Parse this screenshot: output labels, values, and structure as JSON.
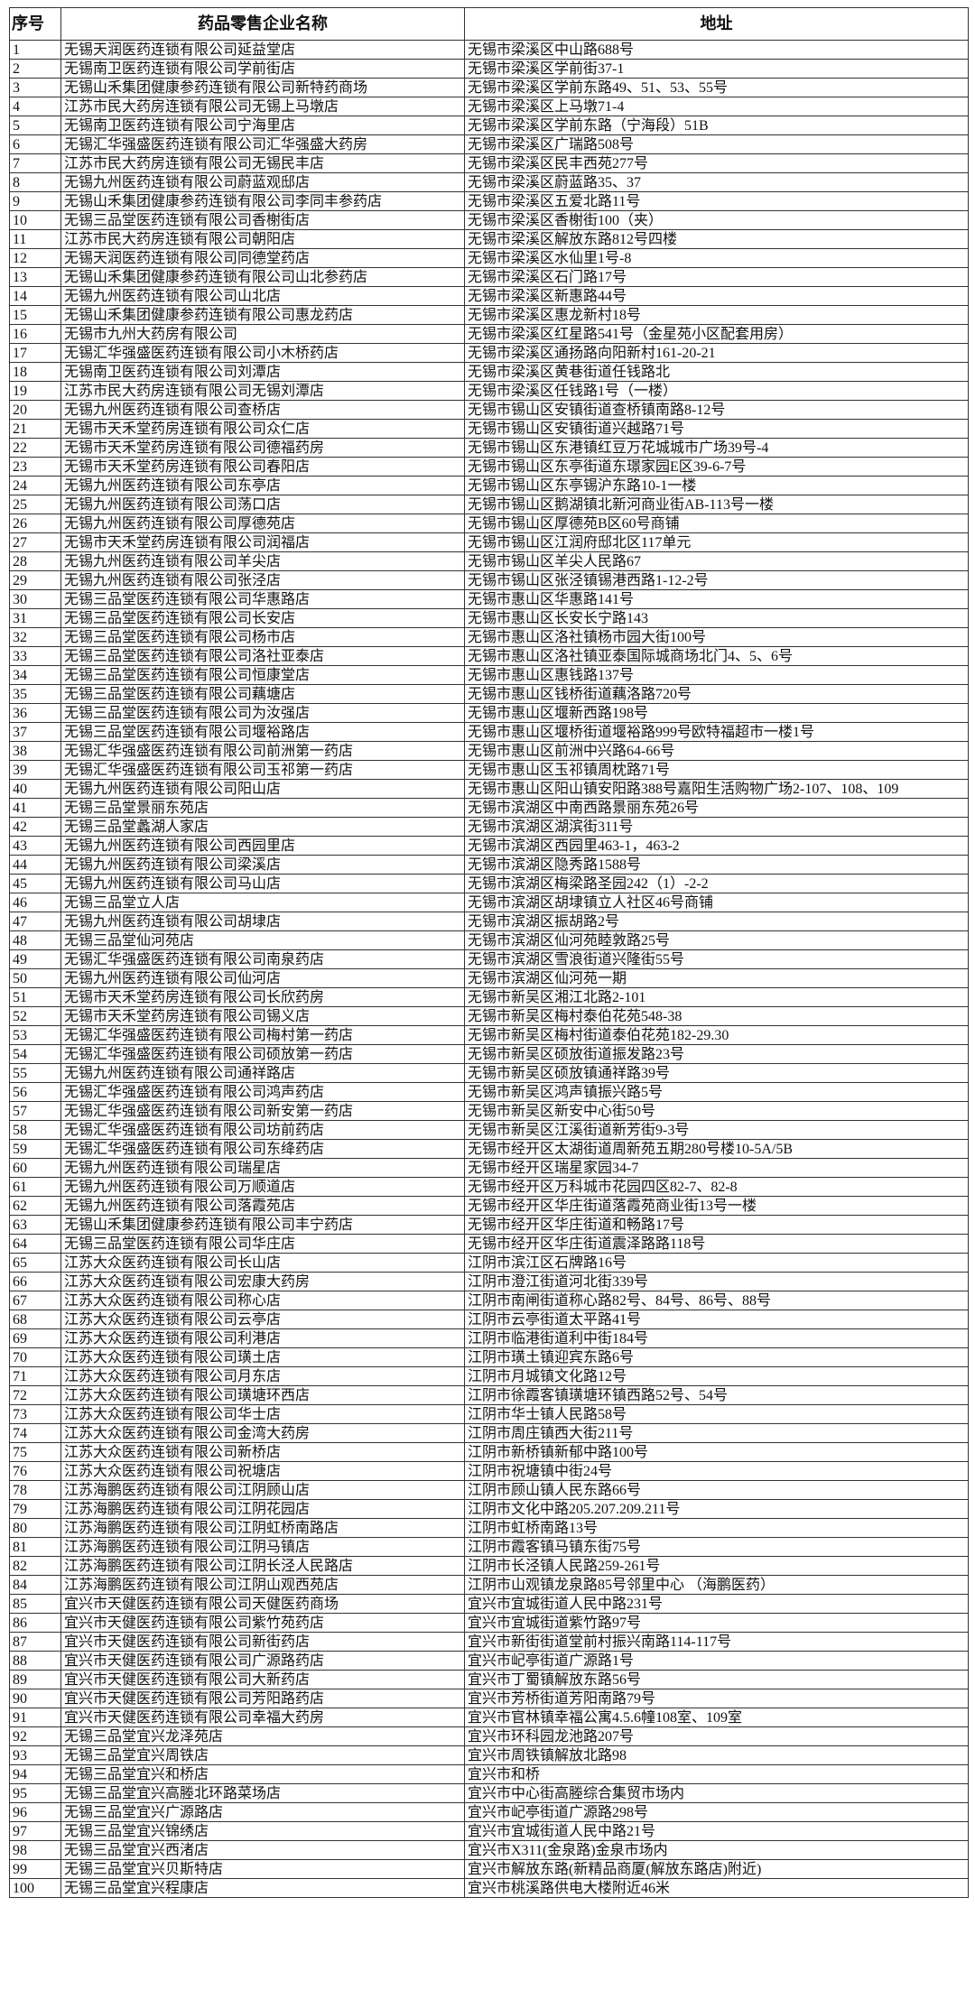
{
  "table": {
    "headers": [
      "序号",
      "药品零售企业名称",
      "地址"
    ],
    "rows": [
      [
        "1",
        "无锡天润医药连锁有限公司延益堂店",
        "无锡市梁溪区中山路688号"
      ],
      [
        "2",
        "无锡南卫医药连锁有限公司学前街店",
        "无锡市梁溪区学前街37-1"
      ],
      [
        "3",
        "无锡山禾集团健康参药连锁有限公司新特药商场",
        "无锡市梁溪区学前东路49、51、53、55号"
      ],
      [
        "4",
        "江苏市民大药房连锁有限公司无锡上马墩店",
        "无锡市梁溪区上马墩71-4"
      ],
      [
        "5",
        "无锡南卫医药连锁有限公司宁海里店",
        "无锡市梁溪区学前东路（宁海段）51B"
      ],
      [
        "6",
        "无锡汇华强盛医药连锁有限公司汇华强盛大药房",
        "无锡市梁溪区广瑞路508号"
      ],
      [
        "7",
        "江苏市民大药房连锁有限公司无锡民丰店",
        "无锡市梁溪区民丰西苑277号"
      ],
      [
        "8",
        "无锡九州医药连锁有限公司蔚蓝观邸店",
        "无锡市梁溪区蔚蓝路35、37"
      ],
      [
        "9",
        "无锡山禾集团健康参药连锁有限公司李同丰参药店",
        "无锡市梁溪区五爱北路11号"
      ],
      [
        "10",
        "无锡三品堂医药连锁有限公司香榭街店",
        "无锡市梁溪区香榭街100（夹）"
      ],
      [
        "11",
        "江苏市民大药房连锁有限公司朝阳店",
        "无锡市梁溪区解放东路812号四楼"
      ],
      [
        "12",
        "无锡天润医药连锁有限公司同德堂药店",
        "无锡市梁溪区水仙里1号-8"
      ],
      [
        "13",
        "无锡山禾集团健康参药连锁有限公司山北参药店",
        "无锡市梁溪区石门路17号"
      ],
      [
        "14",
        "无锡九州医药连锁有限公司山北店",
        "无锡市梁溪区新惠路44号"
      ],
      [
        "15",
        "无锡山禾集团健康参药连锁有限公司惠龙药店",
        "无锡市梁溪区惠龙新村18号"
      ],
      [
        "16",
        "无锡市九州大药房有限公司",
        "无锡市梁溪区红星路541号（金星苑小区配套用房）"
      ],
      [
        "17",
        "无锡汇华强盛医药连锁有限公司小木桥药店",
        "无锡市梁溪区通扬路向阳新村161-20-21"
      ],
      [
        "18",
        "无锡南卫医药连锁有限公司刘潭店",
        "无锡市梁溪区黄巷街道任钱路北"
      ],
      [
        "19",
        "江苏市民大药房连锁有限公司无锡刘潭店",
        "无锡市梁溪区任钱路1号（一楼）"
      ],
      [
        "20",
        "无锡九州医药连锁有限公司查桥店",
        "无锡市锡山区安镇街道查桥镇南路8-12号"
      ],
      [
        "21",
        "无锡市天禾堂药房连锁有限公司众仁店",
        "无锡市锡山区安镇街道兴越路71号"
      ],
      [
        "22",
        "无锡市天禾堂药房连锁有限公司德福药房",
        "无锡市锡山区东港镇红豆万花城城市广场39号-4"
      ],
      [
        "23",
        "无锡市天禾堂药房连锁有限公司春阳店",
        "无锡市锡山区东亭街道东璟家园E区39-6-7号"
      ],
      [
        "24",
        "无锡九州医药连锁有限公司东亭店",
        "无锡市锡山区东亭锡沪东路10-1一楼"
      ],
      [
        "25",
        "无锡九州医药连锁有限公司荡口店",
        "无锡市锡山区鹅湖镇北新河商业街AB-113号一楼"
      ],
      [
        "26",
        "无锡九州医药连锁有限公司厚德苑店",
        "无锡市锡山区厚德苑B区60号商铺"
      ],
      [
        "27",
        "无锡市天禾堂药房连锁有限公司润福店",
        "无锡市锡山区江润府邸北区117单元"
      ],
      [
        "28",
        "无锡九州医药连锁有限公司羊尖店",
        "无锡市锡山区羊尖人民路67"
      ],
      [
        "29",
        "无锡九州医药连锁有限公司张泾店",
        "无锡市锡山区张泾镇锡港西路1-12-2号"
      ],
      [
        "30",
        "无锡三品堂医药连锁有限公司华惠路店",
        "无锡市惠山区华惠路141号"
      ],
      [
        "31",
        "无锡三品堂医药连锁有限公司长安店",
        "无锡市惠山区长安长宁路143"
      ],
      [
        "32",
        "无锡三品堂医药连锁有限公司杨市店",
        "无锡市惠山区洛社镇杨市园大街100号"
      ],
      [
        "33",
        "无锡三品堂医药连锁有限公司洛社亚泰店",
        "无锡市惠山区洛社镇亚泰国际城商场北门4、5、6号"
      ],
      [
        "34",
        "无锡三品堂医药连锁有限公司恒康堂店",
        "无锡市惠山区惠钱路137号"
      ],
      [
        "35",
        "无锡三品堂医药连锁有限公司藕塘店",
        "无锡市惠山区钱桥街道藕洛路720号"
      ],
      [
        "36",
        "无锡三品堂医药连锁有限公司为汝强店",
        "无锡市惠山区堰新西路198号"
      ],
      [
        "37",
        "无锡三品堂医药连锁有限公司堰裕路店",
        "无锡市惠山区堰桥街道堰裕路999号欧特福超市一楼1号"
      ],
      [
        "38",
        "无锡汇华强盛医药连锁有限公司前洲第一药店",
        "无锡市惠山区前洲中兴路64-66号"
      ],
      [
        "39",
        "无锡汇华强盛医药连锁有限公司玉祁第一药店",
        "无锡市惠山区玉祁镇周枕路71号"
      ],
      [
        "40",
        "无锡九州医药连锁有限公司阳山店",
        "无锡市惠山区阳山镇安阳路388号嘉阳生活购物广场2-107、108、109"
      ],
      [
        "41",
        "无锡三品堂景丽东苑店",
        "无锡市滨湖区中南西路景丽东苑26号"
      ],
      [
        "42",
        "无锡三品堂蠡湖人家店",
        "无锡市滨湖区湖滨街311号"
      ],
      [
        "43",
        "无锡九州医药连锁有限公司西园里店",
        "无锡市滨湖区西园里463-1，463-2"
      ],
      [
        "44",
        "无锡九州医药连锁有限公司梁溪店",
        "无锡市滨湖区隐秀路1588号"
      ],
      [
        "45",
        "无锡九州医药连锁有限公司马山店",
        "无锡市滨湖区梅梁路圣园242（1）-2-2"
      ],
      [
        "46",
        "无锡三品堂立人店",
        "无锡市滨湖区胡埭镇立人社区46号商铺"
      ],
      [
        "47",
        "无锡九州医药连锁有限公司胡埭店",
        "无锡市滨湖区振胡路2号"
      ],
      [
        "48",
        "无锡三品堂仙河苑店",
        "无锡市滨湖区仙河苑睦敦路25号"
      ],
      [
        "49",
        "无锡汇华强盛医药连锁有限公司南泉药店",
        "无锡市滨湖区雪浪街道兴隆街55号"
      ],
      [
        "50",
        "无锡九州医药连锁有限公司仙河店",
        "无锡市滨湖区仙河苑一期"
      ],
      [
        "51",
        "无锡市天禾堂药房连锁有限公司长欣药房",
        "无锡市新吴区湘江北路2-101"
      ],
      [
        "52",
        "无锡市天禾堂药房连锁有限公司锡义店",
        "无锡市新吴区梅村泰伯花苑548-38"
      ],
      [
        "53",
        "无锡汇华强盛医药连锁有限公司梅村第一药店",
        "无锡市新吴区梅村街道泰伯花苑182-29.30"
      ],
      [
        "54",
        "无锡汇华强盛医药连锁有限公司硕放第一药店",
        "无锡市新吴区硕放街道振发路23号"
      ],
      [
        "55",
        "无锡九州医药连锁有限公司通祥路店",
        "无锡市新吴区硕放镇通祥路39号"
      ],
      [
        "56",
        "无锡汇华强盛医药连锁有限公司鸿声药店",
        "无锡市新吴区鸿声镇振兴路5号"
      ],
      [
        "57",
        "无锡汇华强盛医药连锁有限公司新安第一药店",
        "无锡市新吴区新安中心街50号"
      ],
      [
        "58",
        "无锡汇华强盛医药连锁有限公司坊前药店",
        "无锡市新吴区江溪街道新芳街9-3号"
      ],
      [
        "59",
        "无锡汇华强盛医药连锁有限公司东绛药店",
        "无锡市经开区太湖街道周新苑五期280号楼10-5A/5B"
      ],
      [
        "60",
        "无锡九州医药连锁有限公司瑞星店",
        "无锡市经开区瑞星家园34-7"
      ],
      [
        "61",
        "无锡九州医药连锁有限公司万顺道店",
        "无锡市经开区万科城市花园四区82-7、82-8"
      ],
      [
        "62",
        "无锡九州医药连锁有限公司落霞苑店",
        "无锡市经开区华庄街道落霞苑商业街13号一楼"
      ],
      [
        "63",
        "无锡山禾集团健康参药连锁有限公司丰宁药店",
        "无锡市经开区华庄街道和畅路17号"
      ],
      [
        "64",
        "无锡三品堂医药连锁有限公司华庄店",
        "无锡市经开区华庄街道震泽路路118号"
      ],
      [
        "65",
        "江苏大众医药连锁有限公司长山店",
        "江阴市滨江区石牌路16号"
      ],
      [
        "66",
        "江苏大众医药连锁有限公司宏康大药房",
        "江阴市澄江街道河北街339号"
      ],
      [
        "67",
        "江苏大众医药连锁有限公司称心店",
        "江阴市南闸街道称心路82号、84号、86号、88号"
      ],
      [
        "68",
        "江苏大众医药连锁有限公司云亭店",
        "江阴市云亭街道太平路41号"
      ],
      [
        "69",
        "江苏大众医药连锁有限公司利港店",
        "江阴市临港街道利中街184号"
      ],
      [
        "70",
        "江苏大众医药连锁有限公司璜土店",
        "江阴市璜土镇迎宾东路6号"
      ],
      [
        "71",
        "江苏大众医药连锁有限公司月东店",
        "江阴市月城镇文化路12号"
      ],
      [
        "72",
        "江苏大众医药连锁有限公司璜塘环西店",
        "江阴市徐霞客镇璜塘环镇西路52号、54号"
      ],
      [
        "73",
        "江苏大众医药连锁有限公司华士店",
        "江阴市华士镇人民路58号"
      ],
      [
        "74",
        "江苏大众医药连锁有限公司金湾大药房",
        "江阴市周庄镇西大街211号"
      ],
      [
        "75",
        "江苏大众医药连锁有限公司新桥店",
        "江阴市新桥镇新郁中路100号"
      ],
      [
        "76",
        "江苏大众医药连锁有限公司祝塘店",
        "江阴市祝塘镇中街24号"
      ],
      [
        "78",
        "江苏海鹏医药连锁有限公司江阴顾山店",
        "江阴市顾山镇人民东路66号"
      ],
      [
        "79",
        "江苏海鹏医药连锁有限公司江阴花园店",
        "江阴市文化中路205.207.209.211号"
      ],
      [
        "80",
        "江苏海鹏医药连锁有限公司江阴虹桥南路店",
        "江阴市虹桥南路13号"
      ],
      [
        "81",
        "江苏海鹏医药连锁有限公司江阴马镇店",
        "江阴市霞客镇马镇东街75号"
      ],
      [
        "82",
        "江苏海鹏医药连锁有限公司江阴长泾人民路店",
        "江阴市长泾镇人民路259-261号"
      ],
      [
        "84",
        "江苏海鹏医药连锁有限公司江阴山观西苑店",
        "江阴市山观镇龙泉路85号邻里中心 （海鹏医药）"
      ],
      [
        "85",
        "宜兴市天健医药连锁有限公司天健医药商场",
        "宜兴市宜城街道人民中路231号"
      ],
      [
        "86",
        "宜兴市天健医药连锁有限公司紫竹苑药店",
        "宜兴市宜城街道紫竹路97号"
      ],
      [
        "87",
        "宜兴市天健医药连锁有限公司新街药店",
        "宜兴市新街街道堂前村振兴南路114-117号"
      ],
      [
        "88",
        "宜兴市天健医药连锁有限公司广源路药店",
        "宜兴市屺亭街道广源路1号"
      ],
      [
        "89",
        "宜兴市天健医药连锁有限公司大新药店",
        "宜兴市丁蜀镇解放东路56号"
      ],
      [
        "90",
        "宜兴市天健医药连锁有限公司芳阳路药店",
        "宜兴市芳桥街道芳阳南路79号"
      ],
      [
        "91",
        "宜兴市天健医药连锁有限公司幸福大药房",
        "宜兴市官林镇幸福公寓4.5.6幢108室、109室"
      ],
      [
        "92",
        "无锡三品堂宜兴龙泽苑店",
        "宜兴市环科园龙池路207号"
      ],
      [
        "93",
        "无锡三品堂宜兴周铁店",
        "宜兴市周铁镇解放北路98"
      ],
      [
        "94",
        "无锡三品堂宜兴和桥店",
        "宜兴市和桥"
      ],
      [
        "95",
        "无锡三品堂宜兴高塍北环路菜场店",
        "宜兴市中心街高塍综合集贸市场内"
      ],
      [
        "96",
        "无锡三品堂宜兴广源路店",
        "宜兴市屺亭街道广源路298号"
      ],
      [
        "97",
        "无锡三品堂宜兴锦绣店",
        "宜兴市宜城街道人民中路21号"
      ],
      [
        "98",
        "无锡三品堂宜兴西渚店",
        "宜兴市X311(金泉路)金泉市场内"
      ],
      [
        "99",
        "无锡三品堂宜兴贝斯特店",
        "宜兴市解放东路(新精品商厦(解放东路店)附近)"
      ],
      [
        "100",
        "无锡三品堂宜兴程康店",
        "宜兴市桃溪路供电大楼附近46米"
      ]
    ]
  }
}
